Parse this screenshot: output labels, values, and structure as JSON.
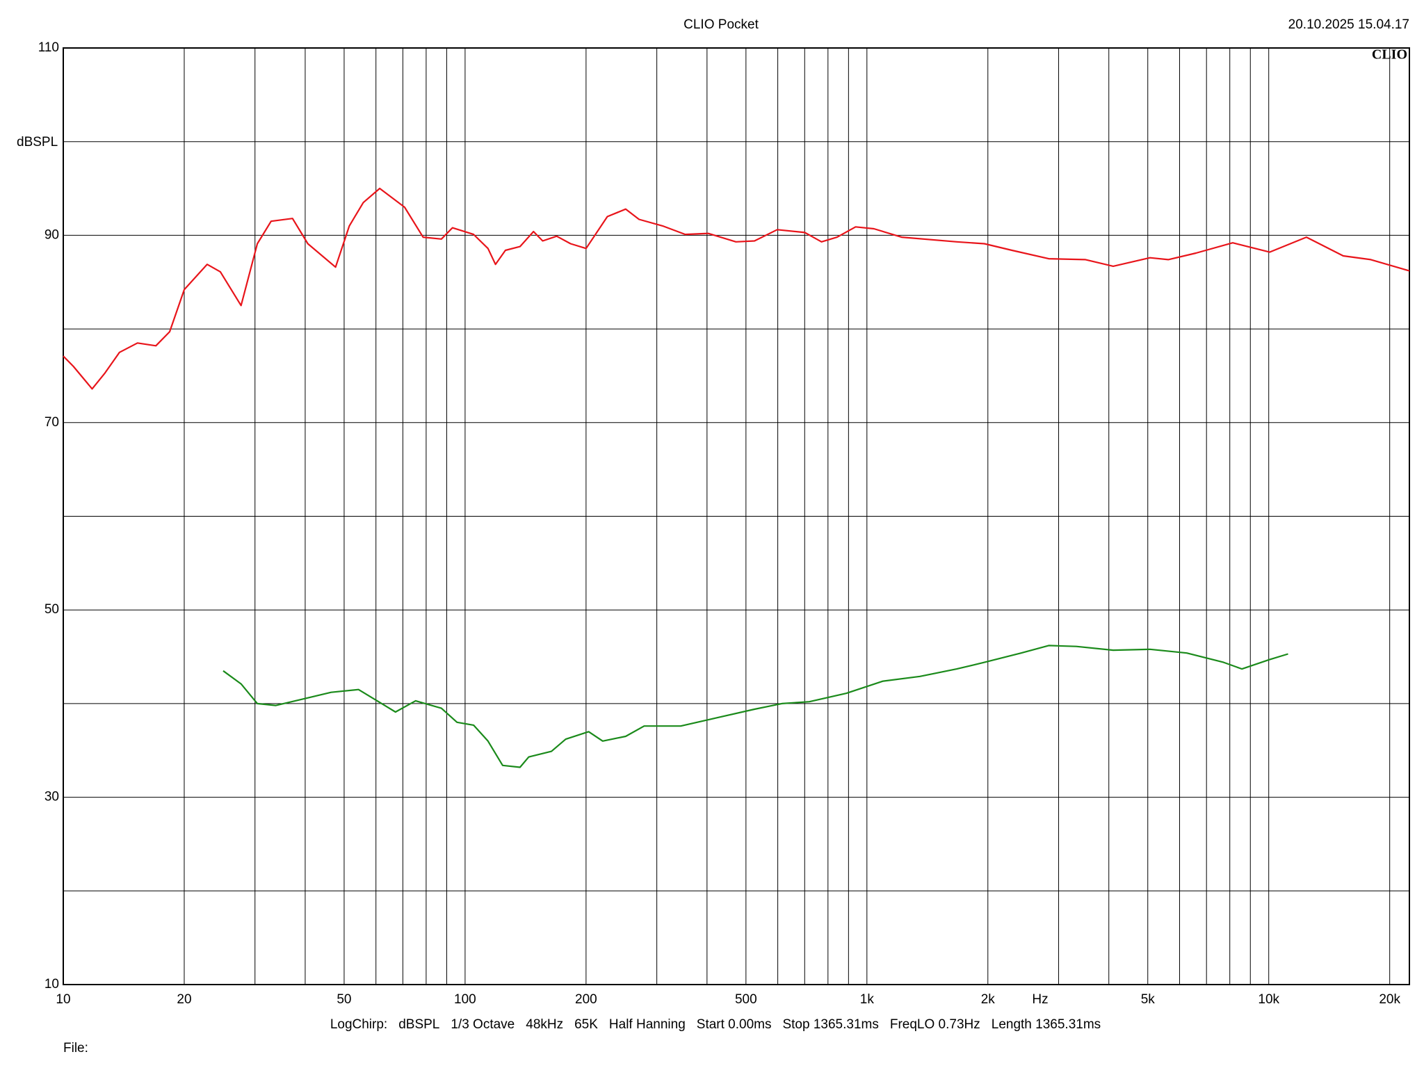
{
  "chart_data": {
    "type": "line",
    "title": "CLIO Pocket",
    "timestamp": "20.10.2025 15.04.17",
    "logo": "CLIO",
    "ylabel": "dBSPL",
    "xlabel": "Hz",
    "xscale": "log",
    "xlim": [
      10,
      22390
    ],
    "ylim": [
      10,
      110
    ],
    "xticks": [
      10,
      20,
      50,
      100,
      200,
      500,
      {
        "value": 1000,
        "label": "1k"
      },
      {
        "value": 2000,
        "label": "2k"
      },
      {
        "value": 5000,
        "label": "5k"
      },
      {
        "value": 10000,
        "label": "10k"
      },
      {
        "value": 20000,
        "label": "20k"
      }
    ],
    "xgrid": [
      30,
      40,
      60,
      70,
      80,
      90,
      300,
      400,
      600,
      700,
      800,
      900,
      3000,
      4000,
      6000,
      7000,
      8000,
      9000
    ],
    "yticks": [
      10,
      30,
      50,
      70,
      90,
      110
    ],
    "ygrid": [
      20,
      40,
      60,
      80,
      100
    ],
    "grid": true,
    "series": [
      {
        "color": "#e8141a",
        "x": [
          10,
          10.6,
          11.8,
          12.7,
          13.8,
          15.3,
          17.0,
          18.4,
          20.0,
          22.8,
          24.6,
          27.7,
          30.4,
          32.9,
          37.2,
          40.6,
          47.6,
          51.5,
          55.8,
          61.3,
          70.7,
          78.6,
          87.3,
          93.0,
          105,
          114,
          119,
          126,
          137,
          148,
          156,
          169,
          183,
          200,
          226,
          251,
          271,
          310,
          353,
          403,
          472,
          525,
          598,
          701,
          771,
          843,
          937,
          1041,
          1220,
          1673,
          1960,
          2296,
          2835,
          3500,
          4101,
          5063,
          5623,
          6589,
          8134,
          10050,
          12410,
          15320,
          17950,
          22390
        ],
        "values": [
          77.1,
          76.0,
          73.6,
          75.3,
          77.5,
          78.5,
          78.2,
          79.7,
          84.2,
          86.9,
          86.1,
          82.5,
          89.1,
          91.5,
          91.8,
          89.1,
          86.6,
          91.0,
          93.5,
          95.0,
          93.0,
          89.8,
          89.6,
          90.8,
          90.1,
          88.6,
          86.9,
          88.4,
          88.8,
          90.4,
          89.4,
          89.9,
          89.1,
          88.6,
          92.0,
          92.8,
          91.7,
          91.0,
          90.1,
          90.2,
          89.3,
          89.4,
          90.6,
          90.3,
          89.3,
          89.8,
          90.9,
          90.7,
          89.8,
          89.3,
          89.1,
          88.4,
          87.5,
          87.4,
          86.7,
          87.6,
          87.4,
          88.1,
          89.2,
          88.2,
          89.8,
          87.8,
          87.4,
          86.2
        ]
      },
      {
        "color": "#1a8a1a",
        "x": [
          25.0,
          27.7,
          30.4,
          33.8,
          39.6,
          46.4,
          54.3,
          60.4,
          67.1,
          75.3,
          87.3,
          95.5,
          105,
          114,
          124,
          137,
          144,
          164,
          178,
          203,
          220,
          251,
          279,
          344,
          425,
          525,
          614,
          719,
          889,
          1097,
          1355,
          1673,
          1960,
          2420,
          2835,
          3320,
          4101,
          5063,
          6252,
          7720,
          8578,
          10050,
          11170
        ],
        "values": [
          43.5,
          42.1,
          40.0,
          39.8,
          40.5,
          41.2,
          41.5,
          40.3,
          39.1,
          40.3,
          39.5,
          38.0,
          37.7,
          36.0,
          33.4,
          33.2,
          34.3,
          34.9,
          36.2,
          37.0,
          36.0,
          36.5,
          37.6,
          37.6,
          38.5,
          39.4,
          40.0,
          40.2,
          41.1,
          42.4,
          42.9,
          43.7,
          44.4,
          45.4,
          46.2,
          46.1,
          45.7,
          45.8,
          45.4,
          44.4,
          43.7,
          44.7,
          45.3
        ]
      }
    ],
    "settings": [
      "LogChirp:",
      "dBSPL",
      "1/3 Octave",
      "48kHz",
      "65K",
      "Half Hanning",
      "Start 0.00ms",
      "Stop 1365.31ms",
      "FreqLO 0.73Hz",
      "Length 1365.31ms"
    ],
    "file_label": "File:"
  }
}
